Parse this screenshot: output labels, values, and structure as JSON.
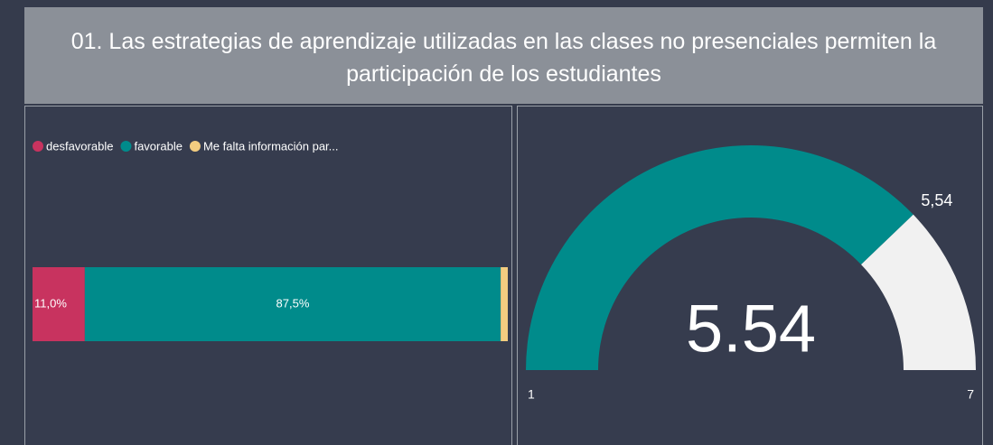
{
  "title": "01. Las estrategias de aprendizaje utilizadas en las clases no presenciales permiten la participación de los estudiantes",
  "chart_data": [
    {
      "type": "stacked_bar",
      "xlim": [
        0,
        100
      ],
      "series": [
        {
          "name": "desfavorable",
          "color": "#c8335f",
          "values": [
            11.0
          ],
          "value_labels": [
            "11,0%"
          ]
        },
        {
          "name": "favorable",
          "color": "#008b8b",
          "values": [
            87.5
          ],
          "value_labels": [
            "87,5%"
          ]
        },
        {
          "name": "Me falta información par...",
          "color": "#f3cd80",
          "values": [
            1.5
          ]
        }
      ]
    },
    {
      "type": "gauge",
      "value": 5.54,
      "value_label": "5,54",
      "callout_label": "5.54",
      "min": 1,
      "max": 7,
      "color": "#008b8b",
      "track_color": "#f1f1f1"
    }
  ]
}
